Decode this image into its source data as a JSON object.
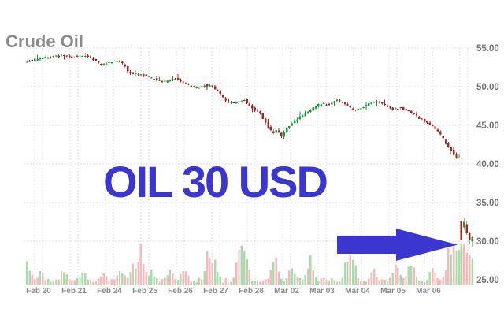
{
  "chart_data": {
    "type": "candlestick",
    "title": "Crude Oil",
    "annotation": {
      "text": "OIL 30 USD"
    },
    "x_axis": {
      "labels": [
        "Feb 20",
        "Feb 21",
        "Feb 24",
        "Feb 25",
        "Feb 26",
        "Feb 27",
        "Feb 28",
        "Mar 02",
        "Mar 03",
        "Mar 04",
        "Mar 05",
        "Mar 06"
      ]
    },
    "y_axis": {
      "labels": [
        "55.00",
        "50.00",
        "45.00",
        "40.00",
        "35.00",
        "30.00",
        "25.00"
      ],
      "values": [
        55,
        50,
        45,
        40,
        35,
        30,
        25
      ],
      "range": [
        25,
        55
      ]
    },
    "grid": "dotted",
    "price_path": [
      [
        0,
        53.3
      ],
      [
        0.027,
        53.5
      ],
      [
        0.053,
        53.8
      ],
      [
        0.085,
        54.0
      ],
      [
        0.112,
        53.8
      ],
      [
        0.139,
        54.1
      ],
      [
        0.161,
        53.4
      ],
      [
        0.176,
        52.8
      ],
      [
        0.194,
        53.2
      ],
      [
        0.216,
        53.3
      ],
      [
        0.23,
        52.9
      ],
      [
        0.237,
        51.9
      ],
      [
        0.252,
        51.7
      ],
      [
        0.277,
        51.5
      ],
      [
        0.303,
        50.9
      ],
      [
        0.324,
        50.6
      ],
      [
        0.346,
        51.1
      ],
      [
        0.368,
        50.5
      ],
      [
        0.393,
        49.8
      ],
      [
        0.415,
        50.2
      ],
      [
        0.433,
        50.0
      ],
      [
        0.453,
        48.9
      ],
      [
        0.471,
        47.9
      ],
      [
        0.489,
        48.0
      ],
      [
        0.505,
        48.3
      ],
      [
        0.524,
        47.2
      ],
      [
        0.542,
        46.6
      ],
      [
        0.56,
        44.8
      ],
      [
        0.572,
        43.9
      ],
      [
        0.582,
        44.5
      ],
      [
        0.59,
        43.3
      ],
      [
        0.603,
        44.6
      ],
      [
        0.621,
        45.5
      ],
      [
        0.643,
        46.4
      ],
      [
        0.663,
        47.2
      ],
      [
        0.685,
        47.9
      ],
      [
        0.699,
        47.5
      ],
      [
        0.717,
        48.4
      ],
      [
        0.739,
        47.6
      ],
      [
        0.761,
        46.9
      ],
      [
        0.784,
        47.5
      ],
      [
        0.806,
        48.2
      ],
      [
        0.828,
        47.6
      ],
      [
        0.848,
        47.1
      ],
      [
        0.866,
        47.3
      ],
      [
        0.884,
        46.8
      ],
      [
        0.904,
        46.1
      ],
      [
        0.922,
        45.5
      ],
      [
        0.938,
        44.9
      ],
      [
        0.953,
        44.1
      ],
      [
        0.966,
        43.0
      ],
      [
        0.976,
        42.2
      ],
      [
        0.987,
        41.3
      ],
      [
        0.996,
        40.7
      ],
      [
        1,
        40.8
      ]
    ],
    "crash_candles": [
      {
        "open": 32.6,
        "high": 33.1,
        "low": 29.8,
        "close": 30.2
      },
      {
        "open": 31.8,
        "high": 33.0,
        "low": 31.5,
        "close": 32.5
      },
      {
        "open": 32.2,
        "high": 32.6,
        "low": 30.8,
        "close": 31.0
      },
      {
        "open": 31.0,
        "high": 31.2,
        "low": 29.6,
        "close": 30.2
      },
      {
        "open": 30.0,
        "high": 30.7,
        "low": 29.3,
        "close": 30.5
      }
    ],
    "volume_profile": [
      [
        0,
        0.6
      ],
      [
        0.03,
        0.25
      ],
      [
        0.083,
        0.28
      ],
      [
        0.127,
        0.2
      ],
      [
        0.171,
        0.16
      ],
      [
        0.21,
        0.28
      ],
      [
        0.238,
        0.4
      ],
      [
        0.256,
        0.95
      ],
      [
        0.28,
        0.3
      ],
      [
        0.321,
        0.36
      ],
      [
        0.353,
        0.4
      ],
      [
        0.404,
        0.72
      ],
      [
        0.418,
        0.56
      ],
      [
        0.476,
        1.0
      ],
      [
        0.489,
        0.8
      ],
      [
        0.556,
        0.8
      ],
      [
        0.591,
        0.52
      ],
      [
        0.633,
        0.6
      ],
      [
        0.718,
        0.72
      ],
      [
        0.732,
        0.48
      ],
      [
        0.776,
        0.32
      ],
      [
        0.827,
        0.56
      ],
      [
        0.862,
        0.6
      ],
      [
        0.908,
        0.4
      ],
      [
        0.947,
        0.9
      ],
      [
        0.96,
        0.8
      ],
      [
        0.975,
        1.0
      ],
      [
        0.988,
        0.6
      ],
      [
        0.998,
        0.4
      ]
    ],
    "colors": {
      "candle_up": "#149b37",
      "candle_down": "#a8241f",
      "volume_up": "#a8ddab",
      "volume_down": "#f6b8ba",
      "grid": "#d4d4d4",
      "y_axis_text": "#747474",
      "x_axis_text": "#8c8c8c",
      "title_text": "#8c8c8c",
      "annotation_blue": "#3a36cf"
    }
  }
}
